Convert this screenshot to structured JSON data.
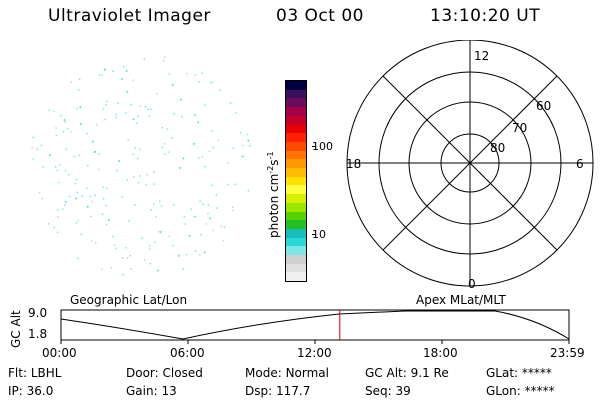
{
  "header": {
    "instrument": "Ultraviolet Imager",
    "date": "03 Oct 00",
    "time": "13:10:20 UT"
  },
  "colorbar": {
    "unit_label": "photon cm",
    "unit_exp1": "-2",
    "unit_mid": "s",
    "unit_exp2": "-1",
    "tick_100": "100",
    "tick_10": "10",
    "colors": [
      "#f0f0f0",
      "#e0e0e0",
      "#cfcfcf",
      "#7ee6e6",
      "#27d6d6",
      "#19bdbd",
      "#22c022",
      "#55d200",
      "#9be600",
      "#d6f000",
      "#ffff40",
      "#ffe000",
      "#ffbb00",
      "#ff9900",
      "#ff7300",
      "#ff4a00",
      "#ff2000",
      "#e80000",
      "#c40028",
      "#a30048",
      "#6a0a5a",
      "#3a0f5e",
      "#000040"
    ]
  },
  "polar": {
    "mlt_top": "12",
    "mlt_left": "18",
    "mlt_right": "6",
    "mlt_bottom": "0",
    "lat_60": "60",
    "lat_70": "70",
    "lat_80": "80"
  },
  "map_labels": {
    "geographic": "Geographic Lat/Lon",
    "apex": "Apex MLat/MLT"
  },
  "timeline": {
    "axis_label": "GC Alt",
    "y_max": "9.0",
    "y_min": "1.8",
    "ticks": [
      "00:00",
      "06:00",
      "12:00",
      "18:00",
      "23:59"
    ],
    "current_time_fraction": 0.5489
  },
  "status": {
    "flt_label": "Flt:",
    "flt_value": "LBHL",
    "door_label": "Door:",
    "door_value": "Closed",
    "mode_label": "Mode:",
    "mode_value": "Normal",
    "gcalt_label": "GC Alt:",
    "gcalt_value": "9.1 Re",
    "glat_label": "GLat:",
    "glat_value": "*****",
    "ip_label": "IP:",
    "ip_value": "36.0",
    "gain_label": "Gain:",
    "gain_value": "13",
    "dsp_label": "Dsp:",
    "dsp_value": "117.7",
    "seq_label": "Seq:",
    "seq_value": "39",
    "glon_label": "GLon:",
    "glon_value": "*****"
  }
}
